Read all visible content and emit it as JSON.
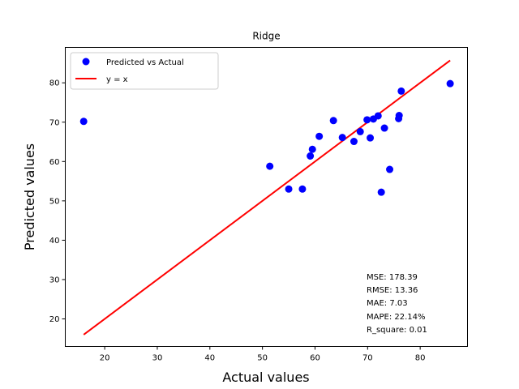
{
  "chart_data": {
    "type": "scatter",
    "title": "Ridge",
    "xlabel": "Actual values",
    "ylabel": "Predicted values",
    "xlim": [
      12.5,
      89.0
    ],
    "ylim": [
      13.0,
      89.0
    ],
    "xticks": [
      20,
      30,
      40,
      50,
      60,
      70,
      80
    ],
    "yticks": [
      20,
      30,
      40,
      50,
      60,
      70,
      80
    ],
    "grid": false,
    "legend_position": "top-left",
    "series": [
      {
        "name": "Predicted vs Actual",
        "type": "scatter",
        "color": "#0000ff",
        "points": [
          [
            16.0,
            70.2
          ],
          [
            51.4,
            58.8
          ],
          [
            55.0,
            53.0
          ],
          [
            57.6,
            53.0
          ],
          [
            59.1,
            61.4
          ],
          [
            59.5,
            63.1
          ],
          [
            60.8,
            66.4
          ],
          [
            63.5,
            70.4
          ],
          [
            65.2,
            66.1
          ],
          [
            67.4,
            65.1
          ],
          [
            68.6,
            67.6
          ],
          [
            69.9,
            70.6
          ],
          [
            70.5,
            66.0
          ],
          [
            71.1,
            70.8
          ],
          [
            72.0,
            71.6
          ],
          [
            72.6,
            52.2
          ],
          [
            73.2,
            68.5
          ],
          [
            74.2,
            58.0
          ],
          [
            75.9,
            70.9
          ],
          [
            76.0,
            71.7
          ],
          [
            76.4,
            77.9
          ],
          [
            85.7,
            79.8
          ]
        ]
      },
      {
        "name": "y = x",
        "type": "line",
        "color": "#ff0000",
        "points": [
          [
            16.0,
            16.0
          ],
          [
            85.7,
            85.7
          ]
        ]
      }
    ],
    "metrics": [
      "MSE: 178.39",
      "RMSE: 13.36",
      "MAE: 7.03",
      "MAPE: 22.14%",
      "R_square: 0.01"
    ]
  }
}
